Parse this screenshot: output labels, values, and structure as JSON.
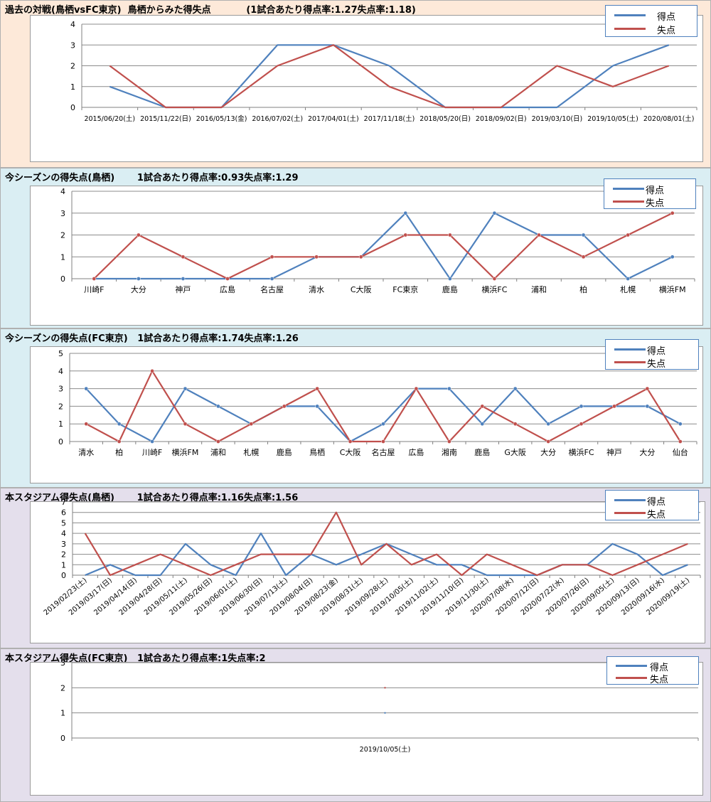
{
  "colors": {
    "goals": "#4f81bd",
    "conceded": "#c0504d",
    "panel_orange": "#fde9d9",
    "panel_blue": "#daeef3",
    "panel_purple": "#e4dfec"
  },
  "legend": {
    "goals": "得点",
    "conceded": "失点"
  },
  "panels": [
    {
      "title": "過去の対戦(鳥栖vsFC東京)  鳥栖からみた得失点           (1試合あたり得点率:1.27失点率:1.18)",
      "chart_data": {
        "type": "line",
        "categories": [
          "2015/06/20(土)",
          "2015/11/22(日)",
          "2016/05/13(金)",
          "2016/07/02(土)",
          "2017/04/01(土)",
          "2017/11/18(土)",
          "2018/05/20(日)",
          "2018/09/02(日)",
          "2019/03/10(日)",
          "2019/10/05(土)",
          "2020/08/01(土)"
        ],
        "series": [
          {
            "name": "得点",
            "values": [
              1,
              0,
              0,
              3,
              3,
              2,
              0,
              0,
              0,
              2,
              3
            ]
          },
          {
            "name": "失点",
            "values": [
              2,
              0,
              0,
              2,
              3,
              1,
              0,
              0,
              2,
              1,
              2
            ]
          }
        ],
        "ylim": [
          0,
          4
        ],
        "yticks": [
          0,
          1,
          2,
          3,
          4
        ],
        "markers": false,
        "rotate_labels": false,
        "grid": true
      }
    },
    {
      "title": "今シーズンの得失点(鳥栖)       1試合あたり得点率:0.93失点率:1.29",
      "chart_data": {
        "type": "line",
        "categories": [
          "川崎F",
          "大分",
          "神戸",
          "広島",
          "名古屋",
          "清水",
          "C大阪",
          "FC東京",
          "鹿島",
          "横浜FC",
          "浦和",
          "柏",
          "札幌",
          "横浜FM"
        ],
        "series": [
          {
            "name": "得点",
            "values": [
              0,
              0,
              0,
              0,
              0,
              1,
              1,
              3,
              0,
              3,
              2,
              2,
              0,
              1
            ]
          },
          {
            "name": "失点",
            "values": [
              0,
              2,
              1,
              0,
              1,
              1,
              1,
              2,
              2,
              0,
              2,
              1,
              2,
              3
            ]
          }
        ],
        "ylim": [
          0,
          4
        ],
        "yticks": [
          0,
          1,
          2,
          3,
          4
        ],
        "markers": true,
        "rotate_labels": false,
        "grid": true
      }
    },
    {
      "title": "今シーズンの得失点(FC東京)   1試合あたり得点率:1.74失点率:1.26",
      "chart_data": {
        "type": "line",
        "categories": [
          "清水",
          "柏",
          "川崎F",
          "横浜FM",
          "浦和",
          "札幌",
          "鹿島",
          "鳥栖",
          "C大阪",
          "名古屋",
          "広島",
          "湘南",
          "鹿島",
          "G大阪",
          "大分",
          "横浜FC",
          "神戸",
          "大分",
          "仙台"
        ],
        "series": [
          {
            "name": "得点",
            "values": [
              3,
              1,
              0,
              3,
              2,
              1,
              2,
              2,
              0,
              1,
              3,
              3,
              1,
              3,
              1,
              2,
              2,
              2,
              1
            ]
          },
          {
            "name": "失点",
            "values": [
              1,
              0,
              4,
              1,
              0,
              1,
              2,
              3,
              0,
              0,
              3,
              0,
              2,
              1,
              0,
              1,
              2,
              3,
              0
            ]
          }
        ],
        "ylim": [
          0,
          5
        ],
        "yticks": [
          0,
          1,
          2,
          3,
          4,
          5
        ],
        "markers": true,
        "rotate_labels": false,
        "grid": true
      }
    },
    {
      "title": "本スタジアム得失点(鳥栖)       1試合あたり得点率:1.16失点率:1.56",
      "chart_data": {
        "type": "line",
        "categories": [
          "2019/02/23(土)",
          "2019/03/17(日)",
          "2019/04/14(日)",
          "2019/04/28(日)",
          "2019/05/11(土)",
          "2019/05/26(日)",
          "2019/06/01(土)",
          "2019/06/30(日)",
          "2019/07/13(土)",
          "2019/08/04(日)",
          "2019/08/23(金)",
          "2019/08/31(土)",
          "2019/09/28(土)",
          "2019/10/05(土)",
          "2019/11/02(土)",
          "2019/11/10(日)",
          "2019/11/30(土)",
          "2020/07/08(水)",
          "2020/07/12(日)",
          "2020/07/22(水)",
          "2020/07/26(日)",
          "2020/09/05(土)",
          "2020/09/13(日)",
          "2020/09/16(水)",
          "2020/09/19(土)"
        ],
        "series": [
          {
            "name": "得点",
            "values": [
              0,
              1,
              0,
              0,
              3,
              1,
              0,
              4,
              0,
              2,
              1,
              2,
              3,
              2,
              1,
              1,
              0,
              0,
              0,
              1,
              1,
              3,
              2,
              0,
              1
            ]
          },
          {
            "name": "失点",
            "values": [
              4,
              0,
              1,
              2,
              1,
              0,
              1,
              2,
              2,
              2,
              6,
              1,
              3,
              1,
              2,
              0,
              2,
              1,
              0,
              1,
              1,
              0,
              1,
              2,
              3
            ]
          }
        ],
        "ylim": [
          0,
          7
        ],
        "yticks": [
          0,
          1,
          2,
          3,
          4,
          5,
          6,
          7
        ],
        "markers": false,
        "rotate_labels": true,
        "grid": true
      }
    },
    {
      "title": "本スタジアム得失点(FC東京)   1試合あたり得点率:1失点率:2",
      "chart_data": {
        "type": "line",
        "categories": [
          "2019/10/05(土)"
        ],
        "series": [
          {
            "name": "得点",
            "values": [
              1
            ]
          },
          {
            "name": "失点",
            "values": [
              2
            ]
          }
        ],
        "ylim": [
          0,
          3
        ],
        "yticks": [
          0,
          1,
          2,
          3
        ],
        "markers": false,
        "rotate_labels": false,
        "grid": true
      }
    }
  ]
}
